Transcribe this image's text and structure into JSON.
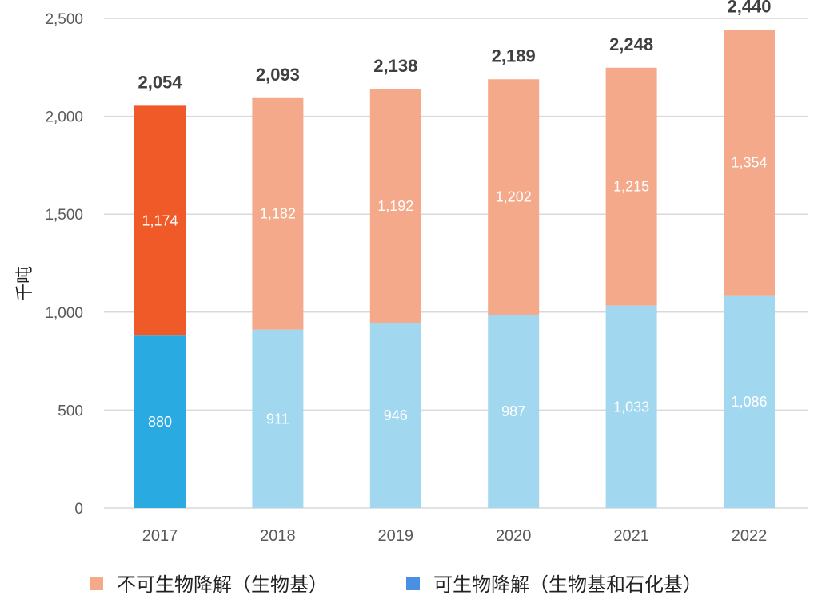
{
  "chart_data": {
    "type": "bar",
    "stacked": true,
    "title": "",
    "xlabel": "",
    "ylabel": "千吨",
    "ylim": [
      0,
      2500
    ],
    "yticks": [
      0,
      500,
      1000,
      1500,
      2000,
      2500
    ],
    "ytick_labels": [
      "0",
      "500",
      "1,000",
      "1,500",
      "2,000",
      "2,500"
    ],
    "grid": true,
    "legend_position": "bottom",
    "categories": [
      "2017",
      "2018",
      "2019",
      "2020",
      "2021",
      "2022"
    ],
    "series": [
      {
        "name": "可生物降解（生物基和石化基）",
        "values": [
          880,
          911,
          946,
          987,
          1033,
          1086
        ],
        "labels": [
          "880",
          "911",
          "946",
          "987",
          "1,033",
          "1,086"
        ],
        "color": "#a2d8ef",
        "highlight_color": "#29abe2",
        "legend_color": "#4a90e2"
      },
      {
        "name": "不可生物降解（生物基）",
        "values": [
          1174,
          1182,
          1192,
          1202,
          1215,
          1354
        ],
        "labels": [
          "1,174",
          "1,182",
          "1,192",
          "1,202",
          "1,215",
          "1,354"
        ],
        "color": "#f4a98a",
        "highlight_color": "#f05a28",
        "legend_color": "#f4a98a"
      }
    ],
    "totals": [
      2054,
      2093,
      2138,
      2189,
      2248,
      2440
    ],
    "total_labels": [
      "2,054",
      "2,093",
      "2,138",
      "2,189",
      "2,248",
      "2,440"
    ],
    "highlighted_category": "2017"
  }
}
